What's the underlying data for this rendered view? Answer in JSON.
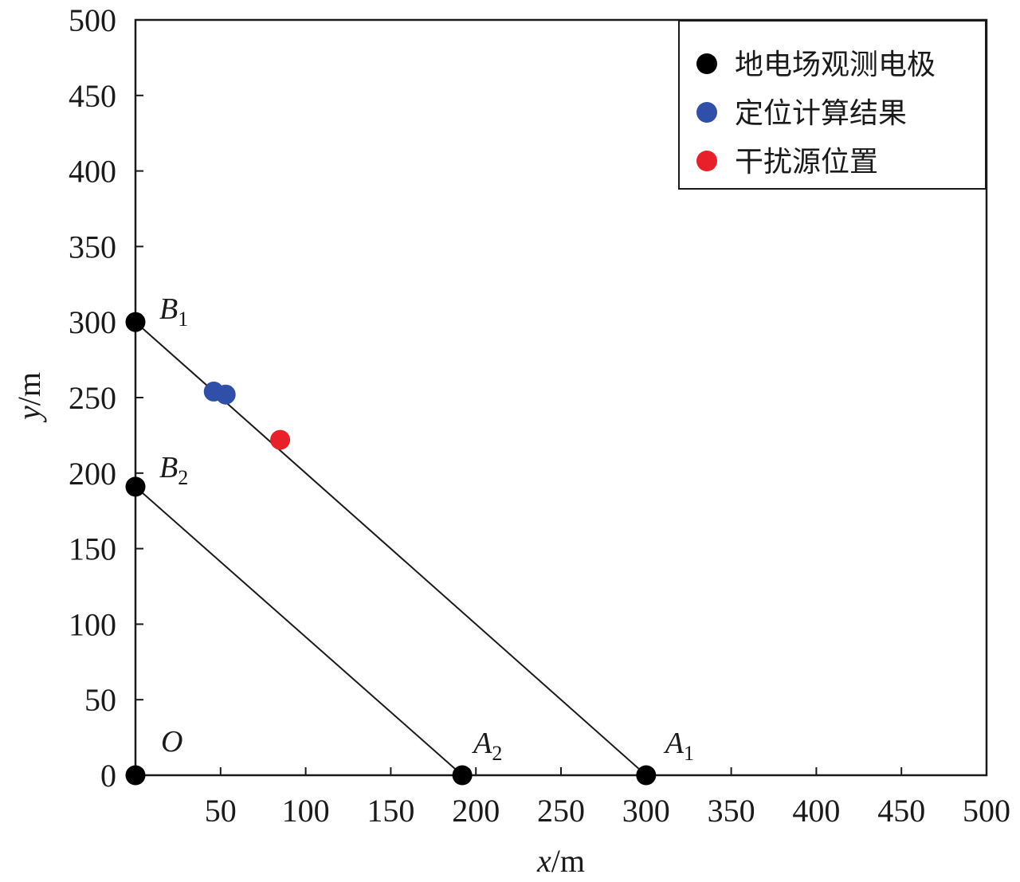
{
  "chart_data": {
    "type": "scatter",
    "title": "",
    "xlabel": {
      "var": "x",
      "unit": "/m"
    },
    "ylabel": {
      "var": "y",
      "unit": "/m"
    },
    "xlim": [
      0,
      500
    ],
    "ylim": [
      0,
      500
    ],
    "x_ticks": [
      50,
      100,
      150,
      200,
      250,
      300,
      350,
      400,
      450,
      500
    ],
    "y_ticks": [
      0,
      50,
      100,
      150,
      200,
      250,
      300,
      350,
      400,
      450,
      500
    ],
    "x_tick_labels": [
      "50",
      "100",
      "150",
      "200",
      "250",
      "300",
      "350",
      "400",
      "450",
      "500"
    ],
    "y_tick_labels": [
      "0",
      "50",
      "100",
      "150",
      "200",
      "250",
      "300",
      "350",
      "400",
      "450",
      "500"
    ],
    "grid": false,
    "legend_position": "top-right",
    "series": [
      {
        "name": "地电场观测电极",
        "color": "#000000",
        "points": [
          {
            "id": "O",
            "x": 0,
            "y": 0,
            "label": "O",
            "sub": ""
          },
          {
            "id": "A1",
            "x": 300,
            "y": 0,
            "label": "A",
            "sub": "1"
          },
          {
            "id": "A2",
            "x": 192,
            "y": 0,
            "label": "A",
            "sub": "2"
          },
          {
            "id": "B1",
            "x": 0,
            "y": 300,
            "label": "B",
            "sub": "1"
          },
          {
            "id": "B2",
            "x": 0,
            "y": 191,
            "label": "B",
            "sub": "2"
          }
        ]
      },
      {
        "name": "定位计算结果",
        "color": "#2f4fa8",
        "points": [
          {
            "id": "r1",
            "x": 46,
            "y": 254
          },
          {
            "id": "r2",
            "x": 53,
            "y": 252
          }
        ]
      },
      {
        "name": "干扰源位置",
        "color": "#e8202a",
        "points": [
          {
            "id": "s1",
            "x": 85,
            "y": 222
          }
        ]
      }
    ],
    "lines": [
      {
        "from": "B1",
        "to": "A1"
      },
      {
        "from": "B2",
        "to": "A2"
      }
    ]
  }
}
